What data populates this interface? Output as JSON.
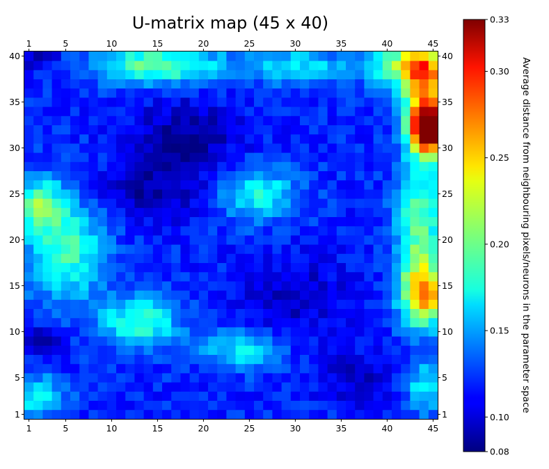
{
  "chart_data": {
    "type": "heatmap",
    "title": "U-matrix map (45 x 40)",
    "grid": {
      "columns": 45,
      "rows": 40
    },
    "x_ticks": [
      1,
      5,
      10,
      15,
      20,
      25,
      30,
      35,
      40,
      45
    ],
    "y_ticks": [
      1,
      5,
      10,
      15,
      20,
      25,
      30,
      35,
      40
    ],
    "xlim": [
      1,
      45
    ],
    "ylim": [
      1,
      40
    ],
    "colormap": "jet",
    "colorbar": {
      "label": "Average distance from neighbouring pixels/neurons in the parameter space",
      "range": [
        0.08,
        0.33
      ],
      "ticks": [
        "0.10",
        "0.15",
        "0.20",
        "0.25",
        "0.30",
        "0.33",
        "0.08"
      ]
    },
    "base_value": 0.12,
    "regions": [
      {
        "description": "top-right hotspot",
        "cx": 44.5,
        "cy": 32,
        "sx": 1.3,
        "sy": 1.8,
        "amp": 0.2
      },
      {
        "description": "top-right warm band",
        "cx": 44,
        "cy": 36.5,
        "sx": 1.6,
        "sy": 3.5,
        "amp": 0.13
      },
      {
        "description": "right middle warm",
        "cx": 44,
        "cy": 14,
        "sx": 1.6,
        "sy": 2.2,
        "amp": 0.12
      },
      {
        "description": "right edge ridge",
        "cx": 43.5,
        "cy": 21,
        "sx": 1.8,
        "sy": 6,
        "amp": 0.08
      },
      {
        "description": "top band",
        "cx": 15,
        "cy": 39,
        "sx": 5,
        "sy": 1.5,
        "amp": 0.08
      },
      {
        "description": "top right band",
        "cx": 42,
        "cy": 39,
        "sx": 3,
        "sy": 1.5,
        "amp": 0.09
      },
      {
        "description": "top middle band",
        "cx": 30,
        "cy": 39,
        "sx": 4,
        "sy": 1.3,
        "amp": 0.05
      },
      {
        "description": "central ridge",
        "cx": 26,
        "cy": 25,
        "sx": 3,
        "sy": 2,
        "amp": 0.06
      },
      {
        "description": "left diagonal ridge",
        "cx": 5,
        "cy": 19,
        "sx": 3,
        "sy": 4,
        "amp": 0.07
      },
      {
        "description": "left upper ridge",
        "cx": 2,
        "cy": 24,
        "sx": 1.8,
        "sy": 2,
        "amp": 0.07
      },
      {
        "description": "lower-left ridge",
        "cx": 13,
        "cy": 11,
        "sx": 3,
        "sy": 2,
        "amp": 0.07
      },
      {
        "description": "lower ridge",
        "cx": 24,
        "cy": 8,
        "sx": 3,
        "sy": 1.5,
        "amp": 0.05
      },
      {
        "description": "bottom-left warm",
        "cx": 2,
        "cy": 3,
        "sx": 2,
        "sy": 1.5,
        "amp": 0.06
      },
      {
        "description": "bottom-right ridge",
        "cx": 44,
        "cy": 4,
        "sx": 1.5,
        "sy": 2,
        "amp": 0.05
      },
      {
        "description": "upper-left cool",
        "cx": 2,
        "cy": 40,
        "sx": 1.5,
        "sy": 1,
        "amp": -0.03
      },
      {
        "description": "dark center",
        "cx": 18,
        "cy": 31,
        "sx": 4,
        "sy": 3,
        "amp": -0.035
      },
      {
        "description": "dark band",
        "cx": 14,
        "cy": 25,
        "sx": 4,
        "sy": 2,
        "amp": -0.03
      },
      {
        "description": "dark lower center",
        "cx": 30,
        "cy": 14,
        "sx": 4,
        "sy": 3,
        "amp": -0.025
      },
      {
        "description": "dark bottom",
        "cx": 37,
        "cy": 5,
        "sx": 3,
        "sy": 2,
        "amp": -0.025
      },
      {
        "description": "dark bottom-left",
        "cx": 3,
        "cy": 9,
        "sx": 1.5,
        "sy": 1,
        "amp": -0.035
      }
    ],
    "noise": 0.012,
    "seed": 7
  }
}
